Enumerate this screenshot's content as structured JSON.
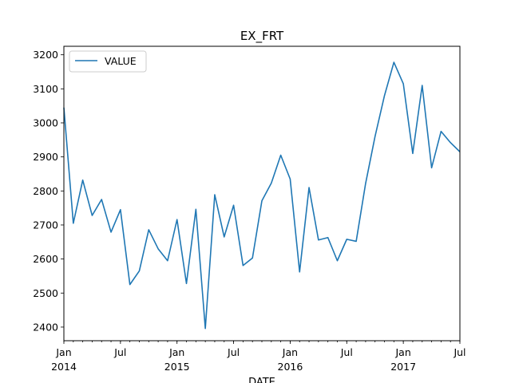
{
  "chart_data": {
    "type": "line",
    "title": "EX_FRT",
    "xlabel": "DATE",
    "ylabel": "",
    "legend_position": "upper-left",
    "grid": false,
    "ylim": [
      2360,
      3225
    ],
    "xlim": [
      "2014-01",
      "2017-07"
    ],
    "x_major_ticks": [
      {
        "date": "2014-01",
        "label": "Jan",
        "year": "2014"
      },
      {
        "date": "2014-07",
        "label": "Jul",
        "year": ""
      },
      {
        "date": "2015-01",
        "label": "Jan",
        "year": "2015"
      },
      {
        "date": "2015-07",
        "label": "Jul",
        "year": ""
      },
      {
        "date": "2016-01",
        "label": "Jan",
        "year": "2016"
      },
      {
        "date": "2016-07",
        "label": "Jul",
        "year": ""
      },
      {
        "date": "2017-01",
        "label": "Jan",
        "year": "2017"
      },
      {
        "date": "2017-07",
        "label": "Jul",
        "year": ""
      }
    ],
    "y_ticks": [
      2400,
      2500,
      2600,
      2700,
      2800,
      2900,
      3000,
      3100,
      3200
    ],
    "colors": {
      "series": "#1f77b4"
    },
    "series": [
      {
        "name": "VALUE",
        "x": [
          "2014-01",
          "2014-02",
          "2014-03",
          "2014-04",
          "2014-05",
          "2014-06",
          "2014-07",
          "2014-08",
          "2014-09",
          "2014-10",
          "2014-11",
          "2014-12",
          "2015-01",
          "2015-02",
          "2015-03",
          "2015-04",
          "2015-05",
          "2015-06",
          "2015-07",
          "2015-08",
          "2015-09",
          "2015-10",
          "2015-11",
          "2015-12",
          "2016-01",
          "2016-02",
          "2016-03",
          "2016-04",
          "2016-05",
          "2016-06",
          "2016-07",
          "2016-08",
          "2016-09",
          "2016-10",
          "2016-11",
          "2016-12",
          "2017-01",
          "2017-02",
          "2017-03",
          "2017-04",
          "2017-05",
          "2017-06",
          "2017-07"
        ],
        "values": [
          3045,
          2705,
          2832,
          2728,
          2775,
          2679,
          2745,
          2525,
          2565,
          2686,
          2630,
          2595,
          2716,
          2528,
          2746,
          2396,
          2789,
          2665,
          2758,
          2581,
          2603,
          2771,
          2823,
          2905,
          2835,
          2562,
          2810,
          2656,
          2663,
          2595,
          2658,
          2652,
          2822,
          2960,
          3080,
          3178,
          3115,
          2910,
          3110,
          2868,
          2975,
          2942,
          2915
        ]
      }
    ]
  }
}
